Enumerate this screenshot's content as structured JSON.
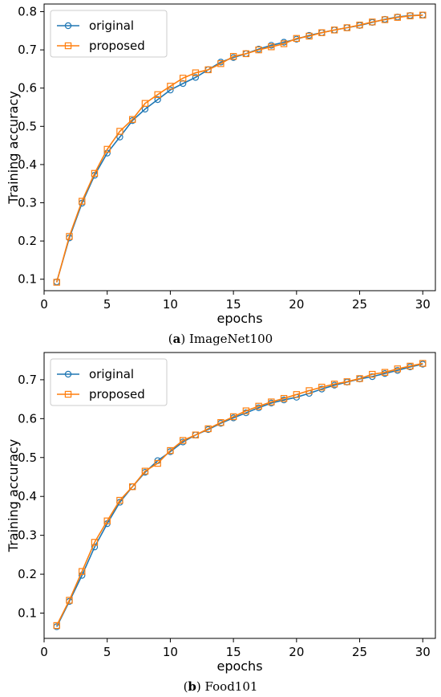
{
  "chart_data": [
    {
      "type": "line",
      "caption_letter": "a",
      "caption_text": "ImageNet100",
      "xlabel": "epochs",
      "ylabel": "Training accuracy",
      "xlim": [
        0,
        31
      ],
      "ylim": [
        0.07,
        0.82
      ],
      "xticks": [
        0,
        5,
        10,
        15,
        20,
        25,
        30
      ],
      "yticks": [
        0.1,
        0.2,
        0.3,
        0.4,
        0.5,
        0.6,
        0.7,
        0.8
      ],
      "ytick_labels": [
        "0.1",
        "0.2",
        "0.3",
        "0.4",
        "0.5",
        "0.6",
        "0.7",
        "0.8"
      ],
      "grid": false,
      "legend_position": "top-left",
      "x": [
        1,
        2,
        3,
        4,
        5,
        6,
        7,
        8,
        9,
        10,
        11,
        12,
        13,
        14,
        15,
        16,
        17,
        18,
        19,
        20,
        21,
        22,
        23,
        24,
        25,
        26,
        27,
        28,
        29,
        30
      ],
      "series": [
        {
          "name": "original",
          "color": "#1f77b4",
          "marker": "circle",
          "values": [
            0.093,
            0.208,
            0.299,
            0.372,
            0.43,
            0.472,
            0.515,
            0.545,
            0.57,
            0.595,
            0.612,
            0.628,
            0.648,
            0.668,
            0.68,
            0.69,
            0.702,
            0.712,
            0.72,
            0.728,
            0.738,
            0.745,
            0.752,
            0.758,
            0.764,
            0.772,
            0.78,
            0.786,
            0.79,
            0.791
          ]
        },
        {
          "name": "proposed",
          "color": "#ff7f0e",
          "marker": "square",
          "values": [
            0.092,
            0.212,
            0.304,
            0.377,
            0.44,
            0.487,
            0.518,
            0.56,
            0.583,
            0.605,
            0.626,
            0.64,
            0.648,
            0.664,
            0.683,
            0.69,
            0.7,
            0.708,
            0.716,
            0.73,
            0.736,
            0.745,
            0.752,
            0.758,
            0.765,
            0.773,
            0.779,
            0.785,
            0.789,
            0.791
          ]
        }
      ]
    },
    {
      "type": "line",
      "caption_letter": "b",
      "caption_text": "Food101",
      "xlabel": "epochs",
      "ylabel": "Training accuracy",
      "xlim": [
        0,
        31
      ],
      "ylim": [
        0.035,
        0.77
      ],
      "xticks": [
        0,
        5,
        10,
        15,
        20,
        25,
        30
      ],
      "yticks": [
        0.1,
        0.2,
        0.3,
        0.4,
        0.5,
        0.6,
        0.7
      ],
      "ytick_labels": [
        "0.1",
        "0.2",
        "0.3",
        "0.4",
        "0.5",
        "0.6",
        "0.7"
      ],
      "grid": false,
      "legend_position": "top-left",
      "x": [
        1,
        2,
        3,
        4,
        5,
        6,
        7,
        8,
        9,
        10,
        11,
        12,
        13,
        14,
        15,
        16,
        17,
        18,
        19,
        20,
        21,
        22,
        23,
        24,
        25,
        26,
        27,
        28,
        29,
        30
      ],
      "series": [
        {
          "name": "original",
          "color": "#1f77b4",
          "marker": "circle",
          "values": [
            0.065,
            0.13,
            0.197,
            0.27,
            0.33,
            0.385,
            0.425,
            0.462,
            0.492,
            0.515,
            0.54,
            0.558,
            0.572,
            0.588,
            0.602,
            0.615,
            0.628,
            0.64,
            0.648,
            0.655,
            0.665,
            0.676,
            0.686,
            0.694,
            0.702,
            0.708,
            0.716,
            0.724,
            0.733,
            0.74
          ]
        },
        {
          "name": "proposed",
          "color": "#ff7f0e",
          "marker": "square",
          "values": [
            0.068,
            0.133,
            0.207,
            0.282,
            0.337,
            0.39,
            0.425,
            0.465,
            0.485,
            0.518,
            0.544,
            0.558,
            0.574,
            0.59,
            0.605,
            0.62,
            0.632,
            0.643,
            0.652,
            0.662,
            0.672,
            0.681,
            0.689,
            0.695,
            0.703,
            0.714,
            0.719,
            0.728,
            0.735,
            0.742
          ]
        }
      ]
    }
  ]
}
